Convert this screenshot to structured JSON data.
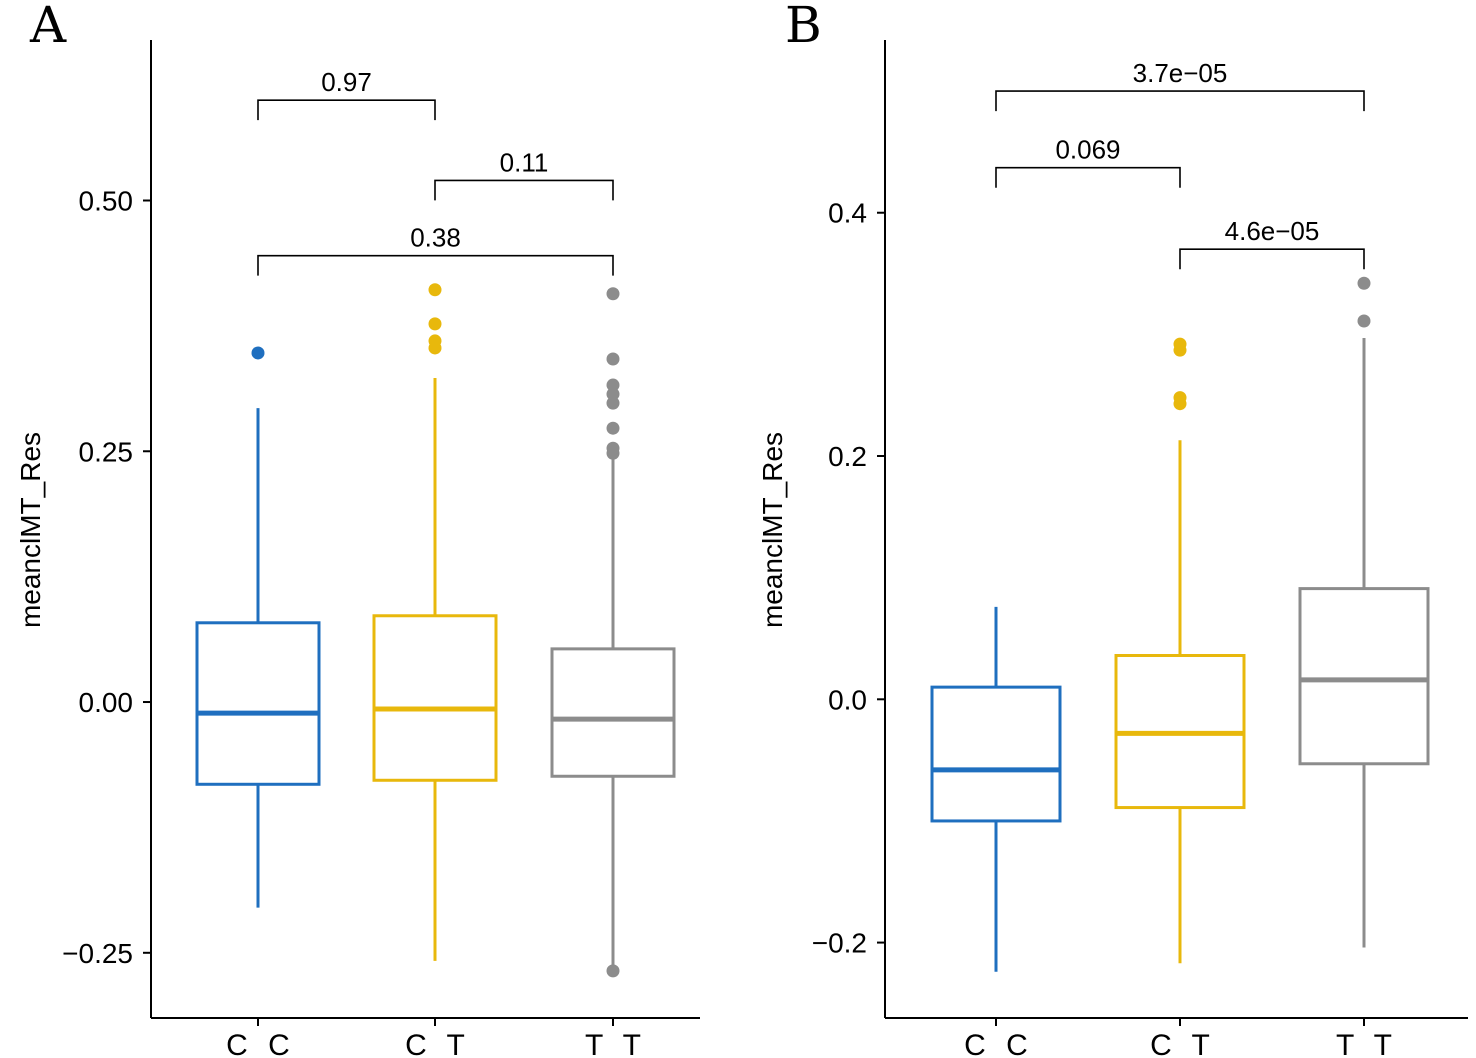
{
  "colors": {
    "CC": "#1f6fbf",
    "CT": "#e8b80c",
    "TT": "#8c8c8c",
    "axis": "#000000"
  },
  "chart_data": [
    {
      "type": "boxplot",
      "panel": "A",
      "ylabel": "meanclMT_Res",
      "xlabel": "",
      "ylim": [
        -0.315,
        0.66
      ],
      "yticks": [
        -0.25,
        0.0,
        0.25,
        0.5
      ],
      "ytick_labels": [
        "−0.25",
        "0.00",
        "0.25",
        "0.50"
      ],
      "categories": [
        "C C",
        "C T",
        "T T"
      ],
      "groups": [
        {
          "name": "C C",
          "color_key": "CC",
          "whisker_low": -0.205,
          "q1": -0.082,
          "median": -0.011,
          "q3": 0.079,
          "whisker_high": 0.293,
          "outliers": [
            0.348
          ]
        },
        {
          "name": "C T",
          "color_key": "CT",
          "whisker_low": -0.258,
          "q1": -0.078,
          "median": -0.007,
          "q3": 0.086,
          "whisker_high": 0.323,
          "outliers": [
            0.353,
            0.36,
            0.377,
            0.411
          ]
        },
        {
          "name": "T T",
          "color_key": "TT",
          "whisker_low": -0.268,
          "q1": -0.074,
          "median": -0.017,
          "q3": 0.053,
          "whisker_high": 0.244,
          "outliers": [
            -0.268,
            0.248,
            0.253,
            0.273,
            0.298,
            0.307,
            0.316,
            0.342,
            0.407
          ]
        }
      ],
      "comparisons": [
        {
          "from": 0,
          "to": 1,
          "label": "0.97",
          "level": 0.6
        },
        {
          "from": 1,
          "to": 2,
          "label": "0.11",
          "level": 0.52
        },
        {
          "from": 0,
          "to": 2,
          "label": "0.38",
          "level": 0.445
        }
      ]
    },
    {
      "type": "boxplot",
      "panel": "B",
      "ylabel": "meanclMT_Res",
      "xlabel": "",
      "ylim": [
        -0.262,
        0.542
      ],
      "yticks": [
        -0.2,
        0.0,
        0.2,
        0.4
      ],
      "ytick_labels": [
        "−0.2",
        "0.0",
        "0.2",
        "0.4"
      ],
      "categories": [
        "C C",
        "C T",
        "T T"
      ],
      "groups": [
        {
          "name": "C C",
          "color_key": "CC",
          "whisker_low": -0.224,
          "q1": -0.1,
          "median": -0.058,
          "q3": 0.01,
          "whisker_high": 0.076,
          "outliers": []
        },
        {
          "name": "C T",
          "color_key": "CT",
          "whisker_low": -0.217,
          "q1": -0.089,
          "median": -0.028,
          "q3": 0.036,
          "whisker_high": 0.213,
          "outliers": [
            0.243,
            0.248,
            0.287,
            0.292
          ]
        },
        {
          "name": "T T",
          "color_key": "TT",
          "whisker_low": -0.204,
          "q1": -0.053,
          "median": 0.016,
          "q3": 0.091,
          "whisker_high": 0.297,
          "outliers": [
            0.311,
            0.342
          ]
        }
      ],
      "comparisons": [
        {
          "from": 0,
          "to": 2,
          "label": "3.7e−05",
          "level": 0.5
        },
        {
          "from": 0,
          "to": 1,
          "label": "0.069",
          "level": 0.437
        },
        {
          "from": 1,
          "to": 2,
          "label": "4.6e−05",
          "level": 0.37
        }
      ]
    }
  ]
}
